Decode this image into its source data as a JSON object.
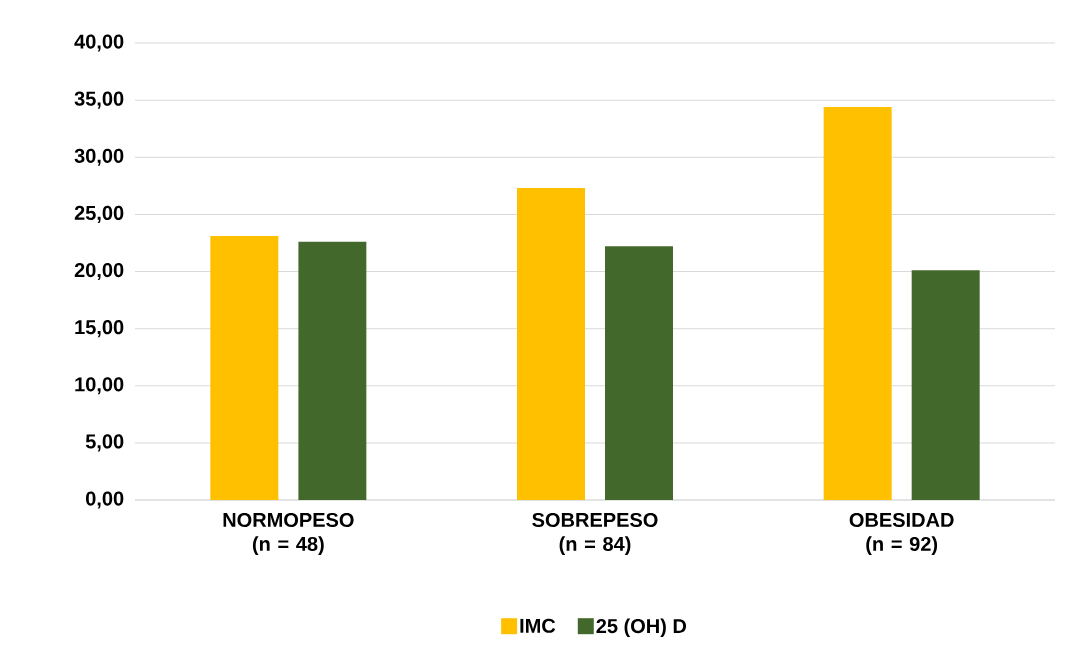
{
  "chart_data": {
    "type": "bar",
    "categories": [
      "NORMOPESO (n = 48)",
      "SOBREPESO (n = 84)",
      "OBESIDAD (n = 92)"
    ],
    "series": [
      {
        "name": "IMC",
        "color": "#ffc000",
        "values": [
          23.1,
          27.3,
          34.4
        ]
      },
      {
        "name": "25 (OH) D",
        "color": "#43682b",
        "values": [
          22.6,
          22.2,
          20.1
        ]
      }
    ],
    "ylim": [
      0,
      40
    ],
    "yticks": [
      {
        "value": 0,
        "label": "0,00"
      },
      {
        "value": 5,
        "label": "5,00"
      },
      {
        "value": 10,
        "label": "10,00"
      },
      {
        "value": 15,
        "label": "15,00"
      },
      {
        "value": 20,
        "label": "20,00"
      },
      {
        "value": 25,
        "label": "25,00"
      },
      {
        "value": 30,
        "label": "30,00"
      },
      {
        "value": 35,
        "label": "35,00"
      },
      {
        "value": 40,
        "label": "40,00"
      }
    ],
    "grid": "y",
    "legend": "bottom"
  }
}
